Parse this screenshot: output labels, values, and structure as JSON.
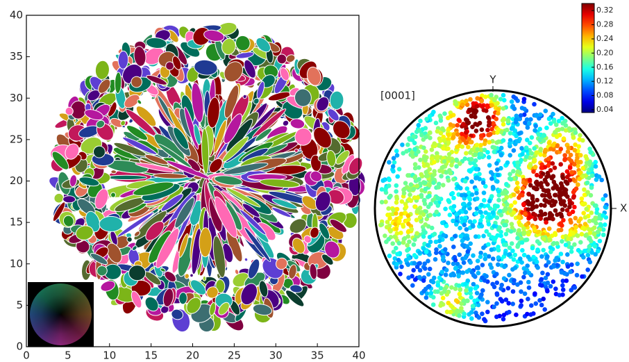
{
  "chart_data": [
    {
      "type": "map",
      "xlim": [
        0,
        40
      ],
      "ylim": [
        0,
        40
      ],
      "xticks": [
        0,
        5,
        10,
        15,
        20,
        25,
        30,
        35,
        40
      ],
      "yticks": [
        0,
        5,
        10,
        15,
        20,
        25,
        30,
        35,
        40
      ]
    },
    {
      "type": "pole_figure",
      "title": "[0001]",
      "x_label": "X",
      "y_label": "Y",
      "colorbar": {
        "lim": [
          0.032,
          0.34
        ],
        "ticks": [
          0.04,
          0.08,
          0.12,
          0.16,
          {
            "value": 0.2,
            "label": "0.20"
          },
          0.24,
          0.28,
          0.32
        ]
      }
    }
  ]
}
